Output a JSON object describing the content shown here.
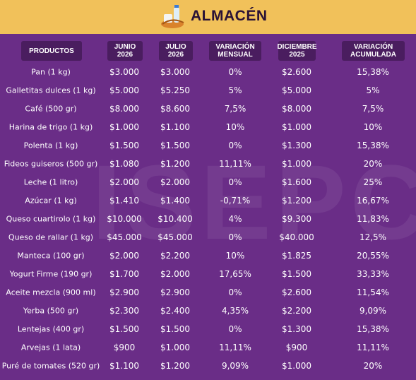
{
  "header": {
    "title": "ALMACÉN"
  },
  "watermark": "ISEPCi",
  "table": {
    "columns": [
      "PRODUCTOS",
      "JUNIO\n2026",
      "JULIO\n2026",
      "VARIACIÓN\nMENSUAL",
      "DICIEMBRE\n2025",
      "VARIACIÓN\nACUMULADA"
    ],
    "rows": [
      [
        "Pan (1 kg)",
        "$3.000",
        "$3.000",
        "0%",
        "$2.600",
        "15,38%"
      ],
      [
        "Galletitas dulces (1 kg)",
        "$5.000",
        "$5.250",
        "5%",
        "$5.000",
        "5%"
      ],
      [
        "Café (500 gr)",
        "$8.000",
        "$8.600",
        "7,5%",
        "$8.000",
        "7,5%"
      ],
      [
        "Harina de trigo (1 kg)",
        "$1.000",
        "$1.100",
        "10%",
        "$1.000",
        "10%"
      ],
      [
        "Polenta (1 kg)",
        "$1.500",
        "$1.500",
        "0%",
        "$1.300",
        "15,38%"
      ],
      [
        "Fideos guiseros (500 gr)",
        "$1.080",
        "$1.200",
        "11,11%",
        "$1.000",
        "20%"
      ],
      [
        "Leche (1 litro)",
        "$2.000",
        "$2.000",
        "0%",
        "$1.600",
        "25%"
      ],
      [
        "Azúcar (1 kg)",
        "$1.410",
        "$1.400",
        "-0,71%",
        "$1.200",
        "16,67%"
      ],
      [
        "Queso cuartirolo (1 kg)",
        "$10.000",
        "$10.400",
        "4%",
        "$9.300",
        "11,83%"
      ],
      [
        "Queso de rallar (1 kg)",
        "$45.000",
        "$45.000",
        "0%",
        "$40.000",
        "12,5%"
      ],
      [
        "Manteca (100 gr)",
        "$2.000",
        "$2.200",
        "10%",
        "$1.825",
        "20,55%"
      ],
      [
        "Yogurt Firme (190 gr)",
        "$1.700",
        "$2.000",
        "17,65%",
        "$1.500",
        "33,33%"
      ],
      [
        "Aceite mezcla (900 ml)",
        "$2.900",
        "$2.900",
        "0%",
        "$2.600",
        "11,54%"
      ],
      [
        "Yerba (500 gr)",
        "$2.300",
        "$2.400",
        "4,35%",
        "$2.200",
        "9,09%"
      ],
      [
        "Lentejas (400 gr)",
        "$1.500",
        "$1.500",
        "0%",
        "$1.300",
        "15,38%"
      ],
      [
        "Arvejas (1 lata)",
        "$900",
        "$1.000",
        "11,11%",
        "$900",
        "11,11%"
      ],
      [
        "Puré de tomates (520 gr)",
        "$1.100",
        "$1.200",
        "9,09%",
        "$1.000",
        "20%"
      ]
    ]
  }
}
